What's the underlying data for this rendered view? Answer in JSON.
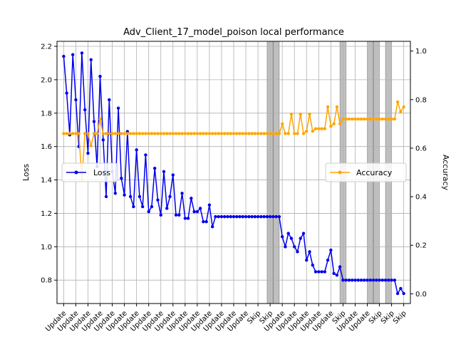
{
  "chart_data": {
    "type": "line",
    "title": "Adv_Client_17_model_poison local performance",
    "xlabel": "",
    "ylabel_left": "Loss",
    "ylabel_right": "Accuracy",
    "ylim_left": [
      0.66,
      2.23
    ],
    "ylim_right": [
      -0.04,
      1.04
    ],
    "yticks_left": [
      "0.8",
      "1.0",
      "1.2",
      "1.4",
      "1.6",
      "1.8",
      "2.0",
      "2.2"
    ],
    "yticks_right": [
      "0.0",
      "0.2",
      "0.4",
      "0.6",
      "0.8",
      "1.0"
    ],
    "grid": true,
    "legend_left": "center-left",
    "legend_right": "center-right",
    "x_tick_labels": [
      "Update",
      "Update",
      "Update",
      "Update",
      "Update",
      "Update",
      "Update",
      "Update",
      "Update",
      "Update",
      "Update",
      "Update",
      "Update",
      "Update",
      "Update",
      "Update",
      "Skip",
      "Skip",
      "Update",
      "Update",
      "Update",
      "Update",
      "Update",
      "Skip",
      "Update",
      "Update",
      "Skip",
      "Skip",
      "Skip"
    ],
    "shaded_x_ranges": [
      [
        67,
        69
      ],
      [
        69,
        71
      ],
      [
        91,
        93
      ],
      [
        100,
        102
      ],
      [
        102,
        104
      ],
      [
        106,
        108
      ]
    ],
    "series": [
      {
        "name": "Loss",
        "axis": "left",
        "color": "#0000ee",
        "x": [
          0,
          1,
          2,
          3,
          4,
          5,
          6,
          7,
          8,
          9,
          10,
          11,
          12,
          13,
          14,
          15,
          16,
          17,
          18,
          19,
          20,
          21,
          22,
          23,
          24,
          25,
          26,
          27,
          28,
          29,
          30,
          31,
          32,
          33,
          34,
          35,
          36,
          37,
          38,
          39,
          40,
          41,
          42,
          43,
          44,
          45,
          46,
          47,
          48,
          49,
          50,
          51,
          52,
          53,
          54,
          55,
          56,
          57,
          58,
          59,
          60,
          61,
          62,
          63,
          64,
          65,
          66,
          67,
          68,
          69,
          70,
          71,
          72,
          73,
          74,
          75,
          76,
          77,
          78,
          79,
          80,
          81,
          82,
          83,
          84,
          85,
          86,
          87,
          88,
          89,
          90,
          91,
          92,
          93,
          94,
          95,
          96,
          97,
          98,
          99,
          100,
          101,
          102,
          103,
          104,
          105,
          106,
          107,
          108,
          109,
          110,
          111,
          112
        ],
        "values": [
          2.14,
          1.92,
          1.67,
          2.15,
          1.88,
          1.6,
          2.16,
          1.82,
          1.56,
          2.12,
          1.75,
          1.48,
          2.02,
          1.64,
          1.3,
          1.88,
          1.45,
          1.32,
          1.83,
          1.41,
          1.31,
          1.69,
          1.3,
          1.24,
          1.58,
          1.3,
          1.24,
          1.55,
          1.21,
          1.24,
          1.47,
          1.28,
          1.19,
          1.45,
          1.23,
          1.3,
          1.43,
          1.19,
          1.19,
          1.32,
          1.17,
          1.17,
          1.29,
          1.21,
          1.21,
          1.23,
          1.15,
          1.15,
          1.25,
          1.12,
          1.18,
          1.18,
          1.18,
          1.18,
          1.18,
          1.18,
          1.18,
          1.18,
          1.18,
          1.18,
          1.18,
          1.18,
          1.18,
          1.18,
          1.18,
          1.18,
          1.18,
          1.18,
          1.18,
          1.18,
          1.18,
          1.18,
          1.06,
          1.0,
          1.08,
          1.05,
          1.0,
          0.97,
          1.05,
          1.08,
          0.92,
          0.97,
          0.89,
          0.85,
          0.85,
          0.85,
          0.85,
          0.92,
          0.98,
          0.84,
          0.83,
          0.88,
          0.8,
          0.8,
          0.8,
          0.8,
          0.8,
          0.8,
          0.8,
          0.8,
          0.8,
          0.8,
          0.8,
          0.8,
          0.8,
          0.8,
          0.8,
          0.8,
          0.8,
          0.8,
          0.72,
          0.75,
          0.72
        ]
      },
      {
        "name": "Accuracy",
        "axis": "right",
        "color": "#ffa500",
        "x": [
          0,
          1,
          2,
          3,
          4,
          5,
          6,
          7,
          8,
          9,
          10,
          11,
          12,
          13,
          14,
          15,
          16,
          17,
          18,
          19,
          20,
          21,
          22,
          23,
          24,
          25,
          26,
          27,
          28,
          29,
          30,
          31,
          32,
          33,
          34,
          35,
          36,
          37,
          38,
          39,
          40,
          41,
          42,
          43,
          44,
          45,
          46,
          47,
          48,
          49,
          50,
          51,
          52,
          53,
          54,
          55,
          56,
          57,
          58,
          59,
          60,
          61,
          62,
          63,
          64,
          65,
          66,
          67,
          68,
          69,
          70,
          71,
          72,
          73,
          74,
          75,
          76,
          77,
          78,
          79,
          80,
          81,
          82,
          83,
          84,
          85,
          86,
          87,
          88,
          89,
          90,
          91,
          92,
          93,
          94,
          95,
          96,
          97,
          98,
          99,
          100,
          101,
          102,
          103,
          104,
          105,
          106,
          107,
          108,
          109,
          110,
          111,
          112
        ],
        "values": [
          0.66,
          0.66,
          0.66,
          0.66,
          0.66,
          0.66,
          0.47,
          0.66,
          0.66,
          0.61,
          0.66,
          0.66,
          0.72,
          0.66,
          0.66,
          0.66,
          0.66,
          0.66,
          0.66,
          0.66,
          0.66,
          0.66,
          0.66,
          0.66,
          0.66,
          0.66,
          0.66,
          0.66,
          0.66,
          0.66,
          0.66,
          0.66,
          0.66,
          0.66,
          0.66,
          0.66,
          0.66,
          0.66,
          0.66,
          0.66,
          0.66,
          0.66,
          0.66,
          0.66,
          0.66,
          0.66,
          0.66,
          0.66,
          0.66,
          0.66,
          0.66,
          0.66,
          0.66,
          0.66,
          0.66,
          0.66,
          0.66,
          0.66,
          0.66,
          0.66,
          0.66,
          0.66,
          0.66,
          0.66,
          0.66,
          0.66,
          0.66,
          0.66,
          0.66,
          0.66,
          0.66,
          0.66,
          0.7,
          0.66,
          0.66,
          0.74,
          0.66,
          0.66,
          0.74,
          0.66,
          0.67,
          0.74,
          0.67,
          0.68,
          0.68,
          0.68,
          0.68,
          0.77,
          0.69,
          0.7,
          0.77,
          0.7,
          0.72,
          0.72,
          0.72,
          0.72,
          0.72,
          0.72,
          0.72,
          0.72,
          0.72,
          0.72,
          0.72,
          0.72,
          0.72,
          0.72,
          0.72,
          0.72,
          0.72,
          0.72,
          0.79,
          0.75,
          0.77
        ]
      }
    ]
  }
}
